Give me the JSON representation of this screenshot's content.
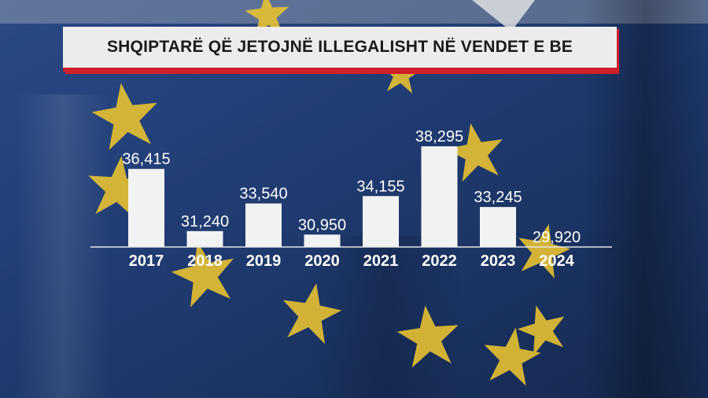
{
  "title": "SHQIPTARË QË JETOJNË ILLEGALISHT NË VENDET E BE",
  "colors": {
    "bar": "#f2f2f2",
    "title_bg": "#ececec",
    "accent": "#d0202a",
    "flag_blue": "#1f3a6e",
    "star": "#e8c233"
  },
  "chart_data": {
    "type": "bar",
    "title": "SHQIPTARË QË JETOJNË ILLEGALISHT NË VENDET E BE",
    "categories": [
      "2017",
      "2018",
      "2019",
      "2020",
      "2021",
      "2022",
      "2023",
      "2024"
    ],
    "values": [
      36415,
      31240,
      33540,
      30950,
      34155,
      38295,
      33245,
      29920
    ],
    "value_labels": [
      "36,415",
      "31,240",
      "33,540",
      "30,950",
      "34,155",
      "38,295",
      "33,245",
      "29,920"
    ],
    "xlabel": "",
    "ylabel": "",
    "ylim": [
      29920,
      38295
    ],
    "grid": false,
    "legend": "none"
  }
}
